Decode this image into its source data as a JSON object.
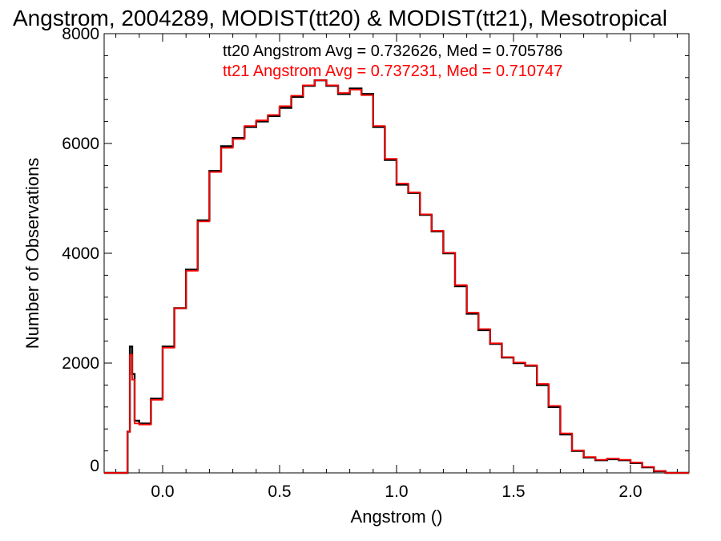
{
  "chart_data": {
    "type": "line",
    "title": "Angstrom, 2004289, MODIST(tt20) & MODIST(tt21), Mesotropical",
    "xlabel": "Angstrom ()",
    "ylabel": "Number of Observations",
    "xlim": [
      -0.25,
      2.25
    ],
    "ylim": [
      0,
      8000
    ],
    "x_ticks": [
      0.0,
      0.5,
      1.0,
      1.5,
      2.0
    ],
    "x_tick_labels": [
      "0.0",
      "0.5",
      "1.0",
      "1.5",
      "2.0"
    ],
    "y_ticks": [
      0,
      2000,
      4000,
      6000,
      8000
    ],
    "y_tick_labels": [
      "0",
      "2000",
      "4000",
      "6000",
      "8000"
    ],
    "grid": false,
    "legend_placement": "top-right",
    "series": [
      {
        "name": "tt20 Angstrom Avg = 0.732626, Med = 0.705786",
        "color": "#000000",
        "x": [
          -0.25,
          -0.16,
          -0.15,
          -0.14,
          -0.13,
          -0.12,
          -0.1,
          -0.05,
          0,
          0.05,
          0.1,
          0.15,
          0.2,
          0.25,
          0.3,
          0.35,
          0.4,
          0.45,
          0.5,
          0.55,
          0.6,
          0.65,
          0.7,
          0.75,
          0.8,
          0.85,
          0.9,
          0.95,
          1,
          1.05,
          1.1,
          1.15,
          1.2,
          1.25,
          1.3,
          1.35,
          1.4,
          1.45,
          1.5,
          1.55,
          1.6,
          1.65,
          1.7,
          1.75,
          1.8,
          1.85,
          1.9,
          1.95,
          2,
          2.05,
          2.1,
          2.15,
          2.2,
          2.25
        ],
        "y": [
          0,
          0,
          750,
          2300,
          1800,
          950,
          900,
          1350,
          2300,
          3000,
          3700,
          4600,
          5500,
          5950,
          6100,
          6300,
          6400,
          6500,
          6650,
          6850,
          7050,
          7150,
          7050,
          6900,
          7000,
          6900,
          6300,
          5700,
          5250,
          5100,
          4700,
          4400,
          4000,
          3400,
          2900,
          2600,
          2350,
          2100,
          2000,
          1950,
          1600,
          1200,
          700,
          400,
          280,
          230,
          250,
          230,
          180,
          100,
          30,
          0,
          0,
          0
        ]
      },
      {
        "name": "tt21 Angstrom Avg = 0.737231, Med = 0.710747",
        "color": "#ff0000",
        "x": [
          -0.25,
          -0.16,
          -0.15,
          -0.14,
          -0.13,
          -0.12,
          -0.1,
          -0.05,
          0,
          0.05,
          0.1,
          0.15,
          0.2,
          0.25,
          0.3,
          0.35,
          0.4,
          0.45,
          0.5,
          0.55,
          0.6,
          0.65,
          0.7,
          0.75,
          0.8,
          0.85,
          0.9,
          0.95,
          1,
          1.05,
          1.1,
          1.15,
          1.2,
          1.25,
          1.3,
          1.35,
          1.4,
          1.45,
          1.5,
          1.55,
          1.6,
          1.65,
          1.7,
          1.75,
          1.8,
          1.85,
          1.9,
          1.95,
          2,
          2.05,
          2.1,
          2.15,
          2.2,
          2.25
        ],
        "y": [
          0,
          0,
          750,
          2150,
          1700,
          900,
          880,
          1330,
          2280,
          3000,
          3680,
          4580,
          5480,
          5920,
          6080,
          6320,
          6420,
          6520,
          6680,
          6870,
          7060,
          7150,
          7060,
          6920,
          6980,
          6880,
          6320,
          5720,
          5270,
          5110,
          4710,
          4410,
          4010,
          3420,
          2920,
          2620,
          2360,
          2110,
          2010,
          1960,
          1620,
          1220,
          720,
          410,
          290,
          240,
          260,
          240,
          190,
          110,
          35,
          0,
          0,
          0
        ]
      }
    ]
  }
}
